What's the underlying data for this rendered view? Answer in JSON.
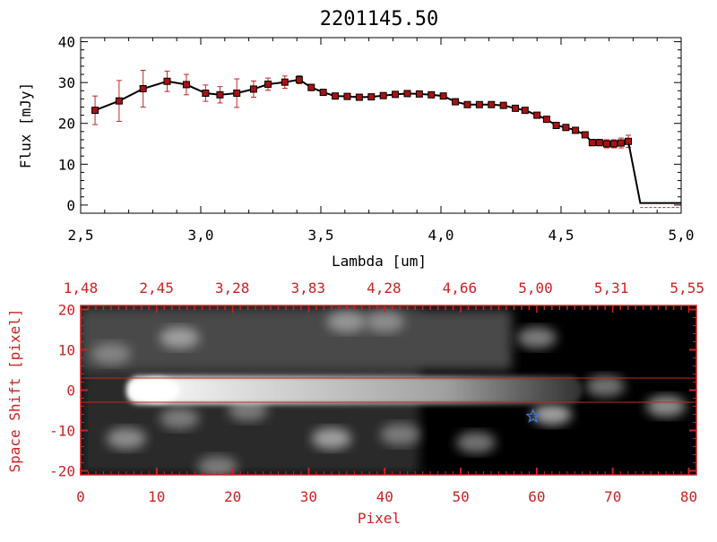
{
  "chart_data": [
    {
      "type": "line",
      "title": "2201145.50",
      "xlabel": "Lambda [um]",
      "ylabel": "Flux [mJy]",
      "xlim": [
        2.5,
        5.0
      ],
      "ylim": [
        -2,
        41
      ],
      "xticks": [
        "2.5",
        "3.0",
        "3.5",
        "4.0",
        "4.5",
        "5.0"
      ],
      "yticks": [
        "0",
        "10",
        "20",
        "30",
        "40"
      ],
      "colors": {
        "line": "#000000",
        "marker": "#aa1111",
        "errorbar": "#cc2222"
      },
      "series": [
        {
          "name": "flux",
          "x": [
            2.56,
            2.66,
            2.76,
            2.86,
            2.94,
            3.02,
            3.08,
            3.15,
            3.22,
            3.28,
            3.35,
            3.41,
            3.46,
            3.51,
            3.56,
            3.61,
            3.66,
            3.71,
            3.76,
            3.81,
            3.86,
            3.91,
            3.96,
            4.01,
            4.06,
            4.11,
            4.16,
            4.21,
            4.26,
            4.31,
            4.35,
            4.4,
            4.44,
            4.48,
            4.52,
            4.56,
            4.6,
            4.63,
            4.66,
            4.69,
            4.72,
            4.75,
            4.78,
            4.83
          ],
          "y": [
            23.2,
            25.5,
            28.5,
            30.3,
            29.5,
            27.4,
            27.0,
            27.4,
            28.4,
            29.6,
            30.1,
            30.7,
            28.8,
            27.6,
            26.7,
            26.6,
            26.4,
            26.5,
            26.8,
            27.1,
            27.3,
            27.2,
            27.0,
            26.7,
            25.3,
            24.6,
            24.6,
            24.6,
            24.4,
            23.7,
            23.2,
            22.0,
            21.0,
            19.5,
            19.0,
            18.3,
            17.2,
            15.3,
            15.3,
            15.0,
            15.0,
            15.2,
            15.6,
            0.5
          ],
          "yerr": [
            3.5,
            5.0,
            4.5,
            2.5,
            2.5,
            2.0,
            2.0,
            3.5,
            2.0,
            1.5,
            1.5,
            1.0,
            0.8,
            0.6,
            0.6,
            0.6,
            0.6,
            0.6,
            0.6,
            0.6,
            0.6,
            0.6,
            0.6,
            0.6,
            0.6,
            0.6,
            0.6,
            0.6,
            0.6,
            0.6,
            0.6,
            0.6,
            0.6,
            0.6,
            0.6,
            0.6,
            0.6,
            0.8,
            0.8,
            1.0,
            1.0,
            1.2,
            1.5,
            0.0
          ],
          "flat_tail_to": 5.0
        }
      ]
    },
    {
      "type": "heatmap",
      "xlabel": "Pixel",
      "ylabel": "Space Shift [pixel]",
      "xlim": [
        0,
        81
      ],
      "ylim": [
        -21,
        21
      ],
      "xticks": [
        "0",
        "10",
        "20",
        "30",
        "40",
        "50",
        "60",
        "70",
        "80"
      ],
      "yticks": [
        "-20",
        "-10",
        "0",
        "10",
        "20"
      ],
      "top_axis_labels": [
        "1.48",
        "2.45",
        "3.28",
        "3.83",
        "4.28",
        "4.66",
        "5.00",
        "5.31",
        "5.55"
      ],
      "extraction_aperture": [
        -3,
        3
      ],
      "trace": {
        "y": 0,
        "x_start": 6,
        "x_end": 66,
        "peak_x": 10
      },
      "blobs": [
        {
          "x": 13,
          "y": 13,
          "level": 0.55
        },
        {
          "x": 35,
          "y": 17,
          "level": 0.5
        },
        {
          "x": 40,
          "y": 17,
          "level": 0.45
        },
        {
          "x": 4,
          "y": 9,
          "level": 0.4
        },
        {
          "x": 13,
          "y": -7,
          "level": 0.35
        },
        {
          "x": 22,
          "y": -5,
          "level": 0.35
        },
        {
          "x": 33,
          "y": -12,
          "level": 0.55
        },
        {
          "x": 42,
          "y": -11,
          "level": 0.35
        },
        {
          "x": 52,
          "y": -13,
          "level": 0.3
        },
        {
          "x": 62,
          "y": -6,
          "level": 0.55
        },
        {
          "x": 6,
          "y": -12,
          "level": 0.45
        },
        {
          "x": 77,
          "y": -4,
          "level": 0.45
        },
        {
          "x": 69,
          "y": 1,
          "level": 0.3
        },
        {
          "x": 18,
          "y": -19,
          "level": 0.35
        },
        {
          "x": 60,
          "y": 13,
          "level": 0.35
        }
      ],
      "marker": {
        "symbol": "star",
        "x": 59.5,
        "y": -6.5,
        "color": "#3a7bd5"
      },
      "colors": {
        "axis": "#cc2222",
        "aperture": "#cc2222",
        "background": "#000000"
      }
    }
  ]
}
